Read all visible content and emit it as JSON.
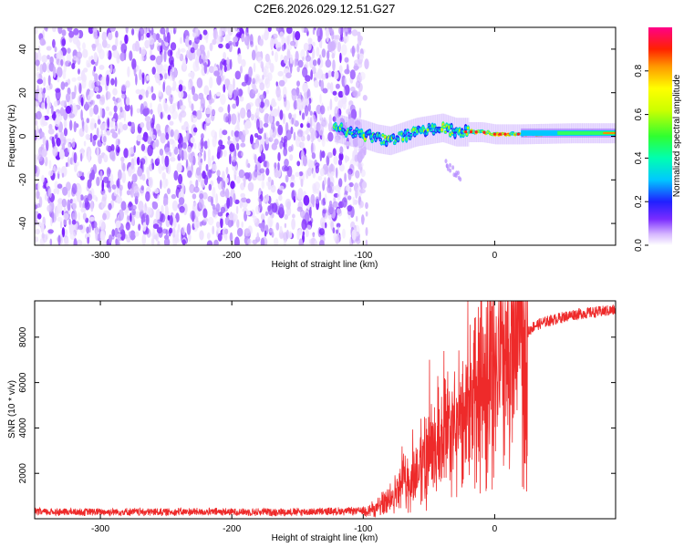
{
  "title": "C2E6.2026.029.12.51.G27",
  "colors": {
    "snr_line": "#ee2a2a",
    "frame": "#000000",
    "background": "#ffffff"
  },
  "chart_data": [
    {
      "type": "heatmap",
      "name": "spectrogram",
      "xlabel": "Height of straight line (km)",
      "ylabel": "Frequency (Hz)",
      "xlim": [
        -350,
        92
      ],
      "ylim": [
        -50,
        50
      ],
      "xticks": [
        -300,
        -200,
        -100,
        0
      ],
      "xtick_labels": [
        "-300",
        "-200",
        "-100",
        "0"
      ],
      "yticks": [
        -40,
        -20,
        0,
        20,
        40
      ],
      "ytick_labels": [
        "-40",
        "-20",
        "0",
        "20",
        "40"
      ],
      "noise_region_km": [
        -350,
        -100
      ],
      "signal_track_hz": [
        [
          -122,
          4
        ],
        [
          -110,
          2
        ],
        [
          -100,
          1
        ],
        [
          -90,
          -1
        ],
        [
          -80,
          -2
        ],
        [
          -70,
          0
        ],
        [
          -60,
          2
        ],
        [
          -50,
          3
        ],
        [
          -40,
          4
        ],
        [
          -30,
          2
        ],
        [
          -20,
          2
        ],
        [
          -10,
          2
        ],
        [
          0,
          1
        ],
        [
          20,
          1
        ],
        [
          60,
          1.5
        ],
        [
          92,
          1.5
        ]
      ],
      "colorbar": {
        "label": "Normalized spectral amplitude",
        "range": [
          0,
          1
        ],
        "ticks": [
          0.0,
          0.2,
          0.4,
          0.6,
          0.8
        ],
        "tick_labels": [
          "0.0",
          "0.2",
          "0.4",
          "0.6",
          "0.8"
        ]
      }
    },
    {
      "type": "line",
      "name": "snr",
      "xlabel": "Height of straight line (km)",
      "ylabel": "SNR (10 * v/v)",
      "xlim": [
        -350,
        92
      ],
      "ylim": [
        0,
        9600
      ],
      "xticks": [
        -300,
        -200,
        -100,
        0
      ],
      "xtick_labels": [
        "-300",
        "-200",
        "-100",
        "0"
      ],
      "yticks": [
        2000,
        4000,
        6000,
        8000
      ],
      "ytick_labels": [
        "2000",
        "4000",
        "6000",
        "8000"
      ],
      "series": [
        {
          "name": "SNR",
          "x": [
            -350,
            -300,
            -250,
            -200,
            -150,
            -100,
            -90,
            -80,
            -70,
            -60,
            -50,
            -40,
            -30,
            -20,
            -10,
            0,
            10,
            20,
            30,
            40,
            60,
            92
          ],
          "y": [
            300,
            300,
            300,
            300,
            300,
            350,
            450,
            900,
            1500,
            2000,
            2800,
            3500,
            3800,
            4500,
            5800,
            6300,
            6800,
            7900,
            8500,
            8700,
            9000,
            9200
          ]
        }
      ]
    }
  ]
}
